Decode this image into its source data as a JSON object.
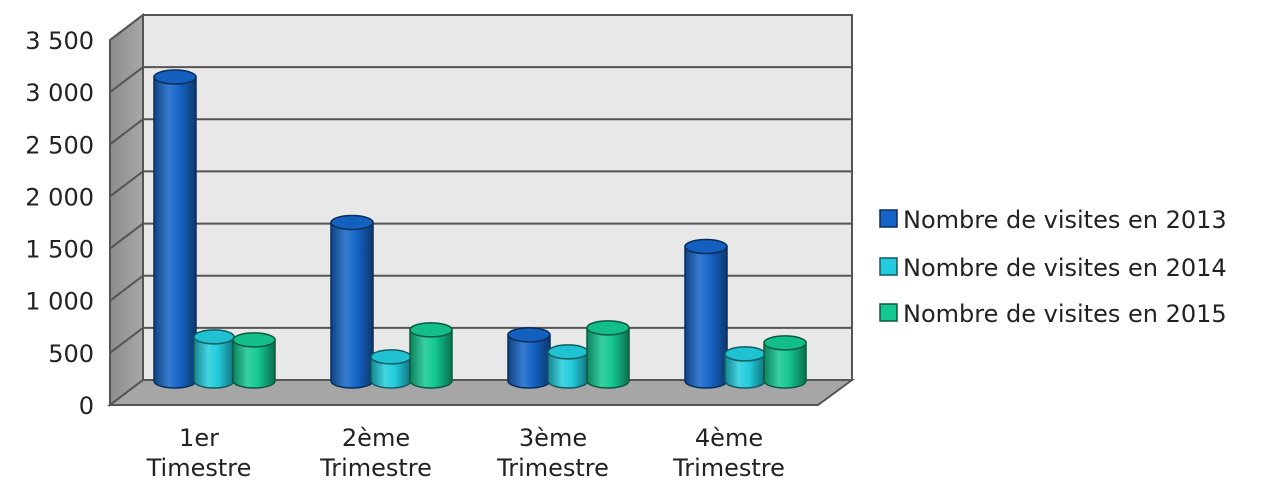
{
  "chart_data": {
    "type": "bar",
    "categories": [
      "1er Timestre",
      "2ème Trimestre",
      "3ème Trimestre",
      "4ème Trimestre"
    ],
    "series": [
      {
        "name": "Nombre de visites en 2013",
        "values": [
          3030,
          1580,
          460,
          1340
        ],
        "color": "#1565c8"
      },
      {
        "name": "Nombre de visites en 2014",
        "values": [
          440,
          240,
          290,
          270
        ],
        "color": "#22ccdc"
      },
      {
        "name": "Nombre de visites en 2015",
        "values": [
          410,
          510,
          530,
          380
        ],
        "color": "#14c890"
      }
    ],
    "yticks": [
      "0",
      "500",
      "1 000",
      "1 500",
      "2 000",
      "2 500",
      "3 000",
      "3 500"
    ],
    "ylim": [
      0,
      3500
    ],
    "grid": true,
    "legend_position": "right",
    "style": "3d-cylinder"
  }
}
